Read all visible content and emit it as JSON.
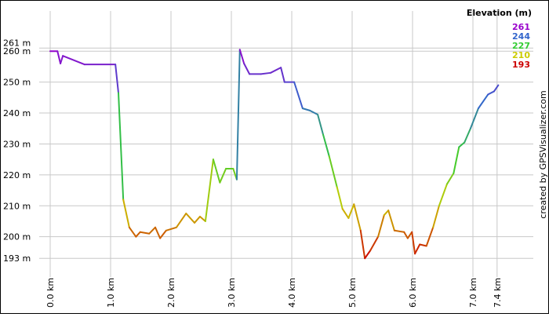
{
  "chart_data": {
    "type": "line",
    "credit": "created by GPSVisualizer.com",
    "legend": {
      "title": "Elevation (m)",
      "items": [
        {
          "value": 261,
          "color": "#9900cc"
        },
        {
          "value": 244,
          "color": "#3366cc"
        },
        {
          "value": 227,
          "color": "#33cc33"
        },
        {
          "value": 210,
          "color": "#cccc00"
        },
        {
          "value": 193,
          "color": "#cc0000"
        }
      ]
    },
    "x": [
      0,
      0.12,
      0.17,
      0.21,
      0.57,
      1.08,
      1.13,
      1.21,
      1.31,
      1.42,
      1.49,
      1.64,
      1.74,
      1.82,
      1.92,
      2.09,
      2.25,
      2.39,
      2.48,
      2.57,
      2.7,
      2.81,
      2.91,
      3.03,
      3.09,
      3.14,
      3.21,
      3.3,
      3.49,
      3.65,
      3.82,
      3.88,
      4.04,
      4.18,
      4.3,
      4.43,
      4.52,
      4.62,
      4.75,
      4.84,
      4.94,
      5.03,
      5.14,
      5.21,
      5.3,
      5.43,
      5.53,
      5.6,
      5.7,
      5.86,
      5.92,
      5.99,
      6.04,
      6.12,
      6.23,
      6.34,
      6.44,
      6.57,
      6.68,
      6.77,
      6.86,
      6.96,
      7.09,
      7.25,
      7.35,
      7.42
    ],
    "series": [
      {
        "name": "Elevation",
        "values": [
          260,
          260,
          256,
          258.5,
          255.7,
          255.7,
          246.5,
          212,
          203,
          200,
          201.5,
          201,
          203,
          199.5,
          202,
          203,
          207.5,
          204.5,
          206.5,
          205,
          225,
          217.5,
          222,
          222,
          218.5,
          260.5,
          256,
          252.6,
          252.6,
          253,
          254.7,
          250,
          250,
          241.5,
          240.8,
          239.5,
          233,
          226,
          216,
          209,
          206,
          210.5,
          202,
          193,
          195.5,
          200,
          207,
          208.5,
          202,
          201.5,
          199.5,
          201.5,
          194.5,
          197.5,
          197,
          203,
          210,
          217,
          220.5,
          229,
          230.5,
          235,
          241.5,
          246,
          247,
          249
        ]
      }
    ],
    "xlim": [
      0,
      8
    ],
    "ylim": [
      189,
      273
    ],
    "xticks": [
      {
        "value": 0,
        "label": "0.0 km"
      },
      {
        "value": 1,
        "label": "1.0 km"
      },
      {
        "value": 2,
        "label": "2.0 km"
      },
      {
        "value": 3,
        "label": "3.0 km"
      },
      {
        "value": 4,
        "label": "4.0 km"
      },
      {
        "value": 5,
        "label": "5.0 km"
      },
      {
        "value": 6,
        "label": "6.0 km"
      },
      {
        "value": 7,
        "label": "7.0 km"
      },
      {
        "value": 7.4,
        "label": "7.4 km"
      }
    ],
    "yticks": [
      {
        "value": 193,
        "label": "193 m"
      },
      {
        "value": 200,
        "label": "200 m"
      },
      {
        "value": 210,
        "label": "210 m"
      },
      {
        "value": 220,
        "label": "220 m"
      },
      {
        "value": 230,
        "label": "230 m"
      },
      {
        "value": 240,
        "label": "240 m"
      },
      {
        "value": 250,
        "label": "250 m"
      },
      {
        "value": 260,
        "label": "260 m"
      },
      {
        "value": 261,
        "label": "261 m"
      }
    ],
    "grid": true
  }
}
